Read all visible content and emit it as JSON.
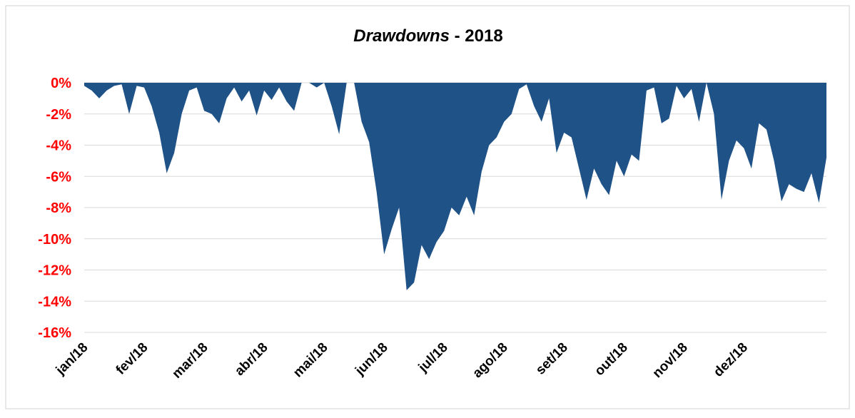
{
  "chart_data": {
    "type": "area",
    "title_parts": [
      "Drawdowns",
      "- 2018"
    ],
    "color": "#1f5287",
    "grid": true,
    "ylim": [
      -16,
      0
    ],
    "yticks": [
      {
        "value": 0,
        "label": "0%"
      },
      {
        "value": -2,
        "label": "-2%"
      },
      {
        "value": -4,
        "label": "-4%"
      },
      {
        "value": -6,
        "label": "-6%"
      },
      {
        "value": -8,
        "label": "-8%"
      },
      {
        "value": -10,
        "label": "-10%"
      },
      {
        "value": -12,
        "label": "-12%"
      },
      {
        "value": -14,
        "label": "-14%"
      },
      {
        "value": -16,
        "label": "-16%"
      }
    ],
    "categories": [
      "jan/18",
      null,
      null,
      null,
      null,
      null,
      null,
      null,
      "fev/18",
      null,
      null,
      null,
      null,
      null,
      null,
      null,
      "mar/18",
      null,
      null,
      null,
      null,
      null,
      null,
      null,
      "abr/18",
      null,
      null,
      null,
      null,
      null,
      null,
      null,
      "mai/18",
      null,
      null,
      null,
      null,
      null,
      null,
      null,
      "jun/18",
      null,
      null,
      null,
      null,
      null,
      null,
      null,
      "jul/18",
      null,
      null,
      null,
      null,
      null,
      null,
      null,
      "ago/18",
      null,
      null,
      null,
      null,
      null,
      null,
      null,
      "set/18",
      null,
      null,
      null,
      null,
      null,
      null,
      null,
      "out/18",
      null,
      null,
      null,
      null,
      null,
      null,
      null,
      "nov/18",
      null,
      null,
      null,
      null,
      null,
      null,
      null,
      "dez/18",
      null,
      null,
      null,
      null,
      null,
      null,
      null,
      null,
      null,
      null,
      null
    ],
    "values": [
      -0.2,
      -0.5,
      -1.0,
      -0.5,
      -0.2,
      -0.1,
      -2.0,
      -0.2,
      -0.3,
      -1.5,
      -3.2,
      -5.8,
      -4.5,
      -2.0,
      -0.5,
      -0.3,
      -1.8,
      -2.0,
      -2.6,
      -1.0,
      -0.3,
      -1.2,
      -0.5,
      -2.1,
      -0.5,
      -1.1,
      -0.3,
      -1.2,
      -1.8,
      0,
      0,
      -0.3,
      0,
      -1.5,
      -3.3,
      0,
      0,
      -2.5,
      -3.8,
      -7.0,
      -11.0,
      -9.4,
      -8.0,
      -13.3,
      -12.8,
      -10.4,
      -11.3,
      -10.2,
      -9.5,
      -8.0,
      -8.5,
      -7.3,
      -8.5,
      -5.7,
      -4.0,
      -3.5,
      -2.5,
      -2.0,
      -0.4,
      -0.1,
      -1.5,
      -2.5,
      -1.0,
      -4.5,
      -3.2,
      -3.5,
      -5.5,
      -7.5,
      -5.5,
      -6.5,
      -7.2,
      -5.0,
      -6.0,
      -4.6,
      -5.0,
      -0.5,
      -0.3,
      -2.6,
      -2.3,
      -0.2,
      -1.0,
      -0.4,
      -2.5,
      0,
      -2.0,
      -7.5,
      -5.0,
      -3.7,
      -4.2,
      -5.5,
      -2.6,
      -3.0,
      -5.0,
      -7.6,
      -6.5,
      -6.8,
      -7.0,
      -5.8,
      -7.7,
      -4.8
    ]
  }
}
